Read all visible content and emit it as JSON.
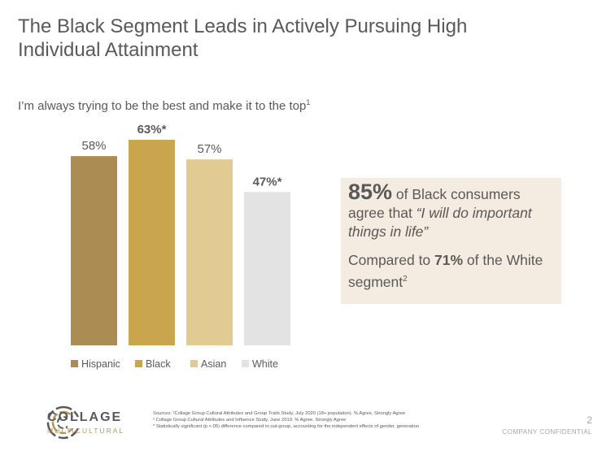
{
  "slide": {
    "title": "The Black Segment Leads in Actively Pursuing High Individual Attainment",
    "subtitle": "I’m always trying to be the best and make it to the top",
    "subtitle_footnote": "1"
  },
  "chart_data": {
    "type": "bar",
    "title": "I’m always trying to be the best and make it to the top",
    "categories": [
      "Hispanic",
      "Black",
      "Asian",
      "White"
    ],
    "values": [
      58,
      63,
      57,
      47
    ],
    "labels": [
      "58%",
      "63%*",
      "57%",
      "47%*"
    ],
    "colors": [
      "#ab8c52",
      "#c9a54e",
      "#e2cb93",
      "#e3e3e3"
    ],
    "ylim": [
      0,
      66
    ],
    "grid": false,
    "legend": "bottom",
    "xlabel": "",
    "ylabel": ""
  },
  "callout": {
    "big_pct": "85%",
    "line1_rest": " of Black consumers agree that ",
    "quote": "“I will do important things in life”",
    "line2_pre": "Compared to ",
    "line2_pct": "71%",
    "line2_rest": " of the White segment",
    "line2_footnote": "2"
  },
  "footer": {
    "brand": "COLLAGE",
    "brand_sub": "MULTICULTURAL",
    "sources": [
      "Sources: ¹Collage Group Cultural Attributes and Group Traits Study, July 2020 (18+ population). % Agree, Strongly Agree",
      "² Collage Group Cultural Attributes and Influence Study, June 2019. % Agree, Strongly Agree",
      "* Statistically significant (p <.05) difference compared to out-group, accounting for the independent effects of gender, generation"
    ],
    "page": "2",
    "confidential": "COMPANY CONFIDENTIAL"
  }
}
